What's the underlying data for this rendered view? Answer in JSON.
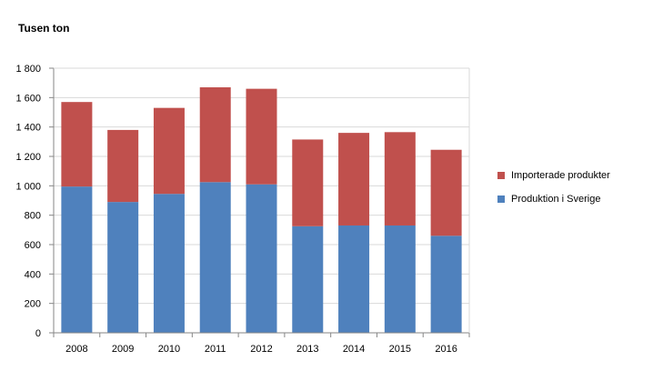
{
  "chart_data": {
    "type": "bar",
    "stacked": true,
    "unit_label": "Tusen ton",
    "categories": [
      "2008",
      "2009",
      "2010",
      "2011",
      "2012",
      "2013",
      "2014",
      "2015",
      "2016"
    ],
    "series": [
      {
        "name": "Produktion i Sverige",
        "color": "#4F81BD",
        "values": [
          995,
          890,
          945,
          1025,
          1010,
          725,
          730,
          730,
          660
        ]
      },
      {
        "name": "Importerade produkter",
        "color": "#C0504D",
        "values": [
          575,
          490,
          585,
          645,
          650,
          590,
          630,
          635,
          585
        ]
      }
    ],
    "ylim": [
      0,
      1800
    ],
    "yticks": [
      0,
      200,
      400,
      600,
      800,
      1000,
      1200,
      1400,
      1600,
      1800
    ],
    "ytick_labels": [
      "0",
      "200",
      "400",
      "600",
      "800",
      "1 000",
      "1 200",
      "1 400",
      "1 600",
      "1 800"
    ],
    "grid": true,
    "legend_position": "right",
    "legend_order": [
      "Importerade produkter",
      "Produktion i Sverige"
    ]
  }
}
